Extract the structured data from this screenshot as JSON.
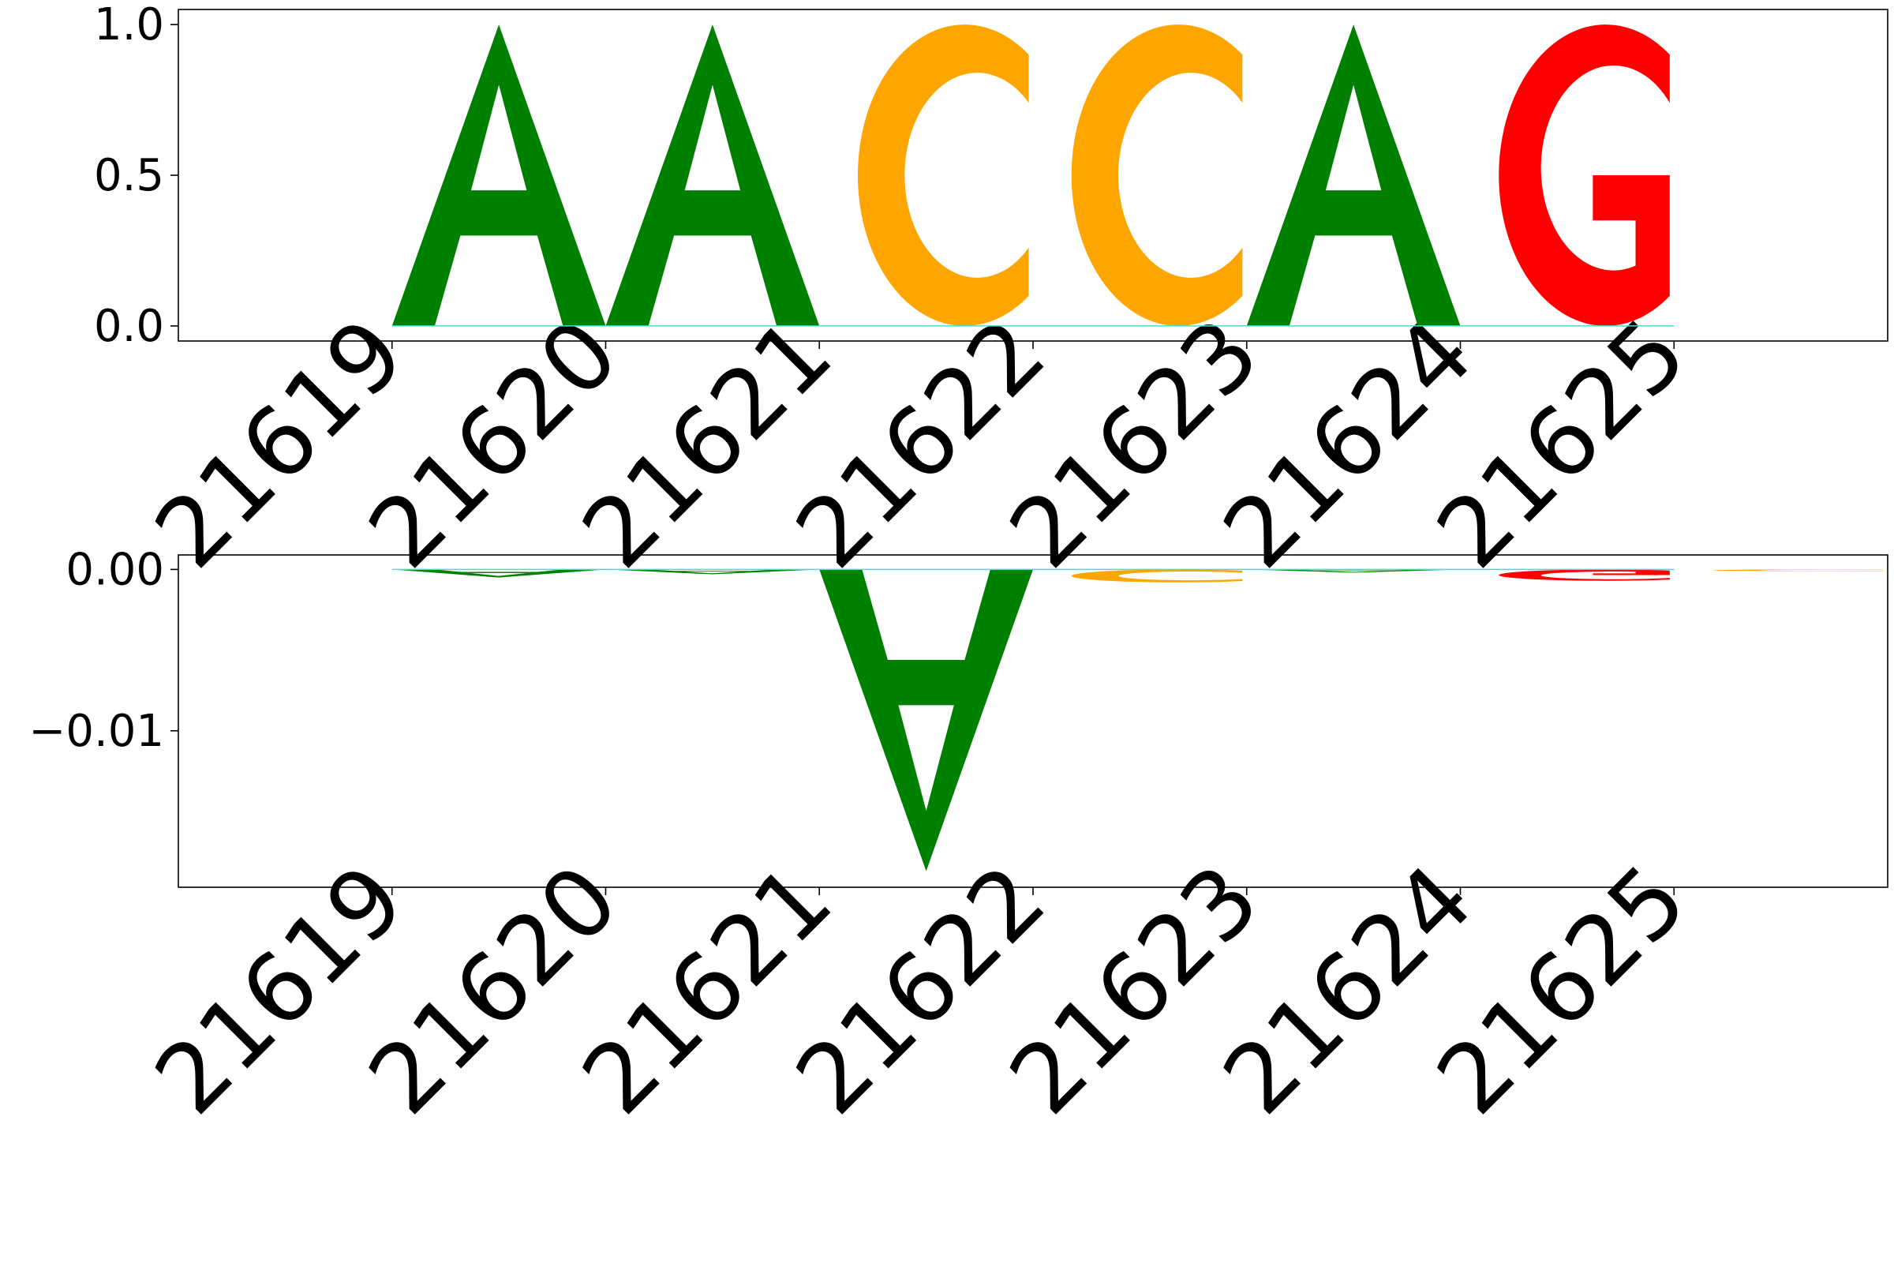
{
  "chart_data": [
    {
      "type": "sequence-logo",
      "x_ticks": [
        "21619",
        "21620",
        "21621",
        "21622",
        "21623",
        "21624",
        "21625"
      ],
      "y_ticks": [
        {
          "value": 0.0,
          "label": "0.0"
        },
        {
          "value": 0.5,
          "label": "0.5"
        },
        {
          "value": 1.0,
          "label": "1.0"
        }
      ],
      "ylim": [
        -0.05,
        1.05
      ],
      "xlim": [
        -1,
        7
      ],
      "letters": [
        {
          "pos": 0,
          "letter": "A",
          "value": 1.0
        },
        {
          "pos": 1,
          "letter": "A",
          "value": 1.0
        },
        {
          "pos": 2,
          "letter": "C",
          "value": 1.0
        },
        {
          "pos": 3,
          "letter": "C",
          "value": 1.0
        },
        {
          "pos": 4,
          "letter": "A",
          "value": 1.0
        },
        {
          "pos": 5,
          "letter": "G",
          "value": 1.0
        }
      ]
    },
    {
      "type": "sequence-logo",
      "x_ticks": [
        "21619",
        "21620",
        "21621",
        "21622",
        "21623",
        "21624",
        "21625"
      ],
      "y_ticks": [
        {
          "value": 0.0,
          "label": "0.00"
        },
        {
          "value": -0.01,
          "label": "−0.01"
        }
      ],
      "ylim": [
        -0.0197,
        0.0009
      ],
      "xlim": [
        -1,
        7
      ],
      "letters": [
        {
          "pos": 0,
          "letter": "A",
          "value": -0.0005
        },
        {
          "pos": 1,
          "letter": "A",
          "value": -0.0003
        },
        {
          "pos": 2,
          "letter": "A",
          "value": -0.0187
        },
        {
          "pos": 3,
          "letter": "C",
          "value": -0.0008
        },
        {
          "pos": 4,
          "letter": "A",
          "value": -0.0002
        },
        {
          "pos": 5,
          "letter": "G",
          "value": -0.0007
        },
        {
          "pos": 6,
          "letter": "C",
          "value": -0.0001
        }
      ]
    }
  ],
  "colors": {
    "A": "#008000",
    "C": "#ffa500",
    "G": "#ff0000",
    "T": "#ff0000",
    "baseline": "#40e0d0"
  }
}
